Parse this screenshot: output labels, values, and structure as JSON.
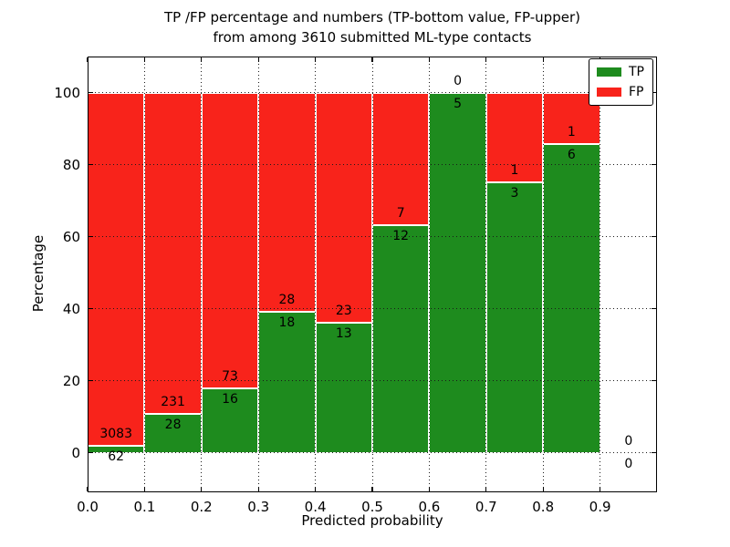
{
  "chart_data": {
    "type": "bar",
    "stacked": true,
    "title_line1": "TP /FP percentage and numbers (TP-bottom value, FP-upper)",
    "title_line2": "from among 3610 submitted ML-type contacts",
    "xlabel": "Predicted probability",
    "ylabel": "Percentage",
    "xlim": [
      0,
      1.0
    ],
    "ylim": [
      -11,
      110
    ],
    "xticks": [
      0.0,
      0.1,
      0.2,
      0.3,
      0.4,
      0.5,
      0.6,
      0.7,
      0.8,
      0.9
    ],
    "xtick_labels": [
      "0.0",
      "0.1",
      "0.2",
      "0.3",
      "0.4",
      "0.5",
      "0.6",
      "0.7",
      "0.8",
      "0.9"
    ],
    "yticks": [
      0,
      20,
      40,
      60,
      80,
      100
    ],
    "ytick_labels": [
      "0",
      "20",
      "40",
      "60",
      "80",
      "100"
    ],
    "grid": true,
    "bar_unit": "percent of bin total, stacked to 100",
    "bins": [
      {
        "range": [
          0.0,
          0.1
        ],
        "tp": 62,
        "fp": 3083
      },
      {
        "range": [
          0.1,
          0.2
        ],
        "tp": 28,
        "fp": 231
      },
      {
        "range": [
          0.2,
          0.3
        ],
        "tp": 16,
        "fp": 73
      },
      {
        "range": [
          0.3,
          0.4
        ],
        "tp": 18,
        "fp": 28
      },
      {
        "range": [
          0.4,
          0.5
        ],
        "tp": 13,
        "fp": 23
      },
      {
        "range": [
          0.5,
          0.6
        ],
        "tp": 12,
        "fp": 7
      },
      {
        "range": [
          0.6,
          0.7
        ],
        "tp": 5,
        "fp": 0
      },
      {
        "range": [
          0.7,
          0.8
        ],
        "tp": 3,
        "fp": 1
      },
      {
        "range": [
          0.8,
          0.9
        ],
        "tp": 6,
        "fp": 1
      },
      {
        "range": [
          0.9,
          1.0
        ],
        "tp": 0,
        "fp": 0
      }
    ],
    "legend": {
      "position": "upper-right",
      "entries": [
        {
          "label": "TP",
          "color": "#1e8b1e"
        },
        {
          "label": "FP",
          "color": "#f8231b"
        }
      ]
    },
    "colors": {
      "tp": "#1e8b1e",
      "fp": "#f8231b",
      "grid": "#1a1a1a",
      "bar_edge": "#ffffff",
      "text": "#000000",
      "background": "#ffffff"
    }
  }
}
